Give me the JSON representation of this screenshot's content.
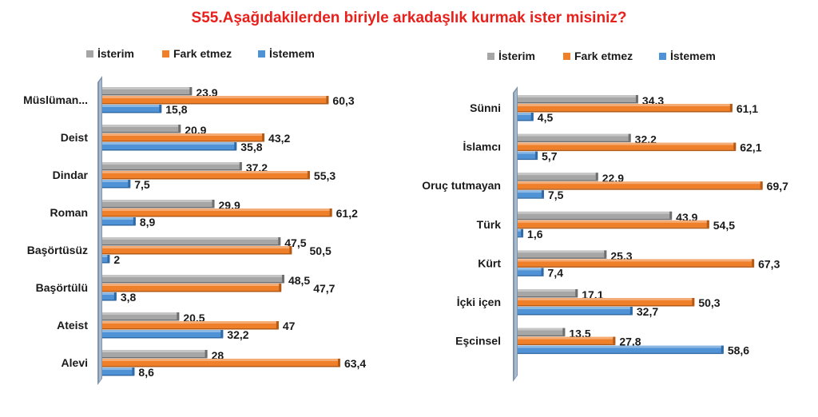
{
  "title": "S55.Aşağıdakilerden biriyle arkadaşlık kurmak ister misiniz?",
  "chart_data": [
    {
      "type": "bar",
      "orientation": "horizontal",
      "title": "S55.Aşağıdakilerden biriyle arkadaşlık kurmak ister misiniz?",
      "legend": [
        "İsterim",
        "Fark etmez",
        "İstemem"
      ],
      "legend_position": "top",
      "categories": [
        "Müslüman...",
        "Deist",
        "Dindar",
        "Roman",
        "Başörtüsüz",
        "Başörtülü",
        "Ateist",
        "Alevi"
      ],
      "series": [
        {
          "name": "İsterim",
          "color": "#a6a6a6",
          "values": [
            23.9,
            20.9,
            37.2,
            29.9,
            47.5,
            48.5,
            20.5,
            28
          ]
        },
        {
          "name": "Fark etmez",
          "color": "#f07f2a",
          "values": [
            60.3,
            43.2,
            55.3,
            61.2,
            50.5,
            47.7,
            47,
            63.4
          ]
        },
        {
          "name": "İstemem",
          "color": "#4f92d6",
          "values": [
            15.8,
            35.8,
            7.5,
            8.9,
            2,
            3.8,
            32.2,
            8.6
          ]
        }
      ],
      "labels": [
        [
          "23,9",
          "20,9",
          "37,2",
          "29,9",
          "47,5",
          "48,5",
          "20,5",
          "28"
        ],
        [
          "60,3",
          "43,2",
          "55,3",
          "61,2",
          "50,5",
          "47,7",
          "47",
          "63,4"
        ],
        [
          "15,8",
          "35,8",
          "7,5",
          "8,9",
          "2",
          "3,8",
          "32,2",
          "8,6"
        ]
      ]
    },
    {
      "type": "bar",
      "orientation": "horizontal",
      "legend": [
        "İsterim",
        "Fark etmez",
        "İstemem"
      ],
      "legend_position": "top",
      "categories": [
        "Sünni",
        "İslamcı",
        "Oruç tutmayan",
        "Türk",
        "Kürt",
        "İçki içen",
        "Eşcinsel"
      ],
      "series": [
        {
          "name": "İsterim",
          "color": "#a6a6a6",
          "values": [
            34.3,
            32.2,
            22.9,
            43.9,
            25.3,
            17.1,
            13.5
          ]
        },
        {
          "name": "Fark etmez",
          "color": "#f07f2a",
          "values": [
            61.1,
            62.1,
            69.7,
            54.5,
            67.3,
            50.3,
            27.8
          ]
        },
        {
          "name": "İstemem",
          "color": "#4f92d6",
          "values": [
            4.5,
            5.7,
            7.5,
            1.6,
            7.4,
            32.7,
            58.6
          ]
        }
      ],
      "labels": [
        [
          "34,3",
          "32,2",
          "22,9",
          "43,9",
          "25,3",
          "17,1",
          "13,5"
        ],
        [
          "61,1",
          "62,1",
          "69,7",
          "54,5",
          "67,3",
          "50,3",
          "27,8"
        ],
        [
          "4,5",
          "5,7",
          "7,5",
          "1,6",
          "7,4",
          "32,7",
          "58,6"
        ]
      ]
    }
  ]
}
